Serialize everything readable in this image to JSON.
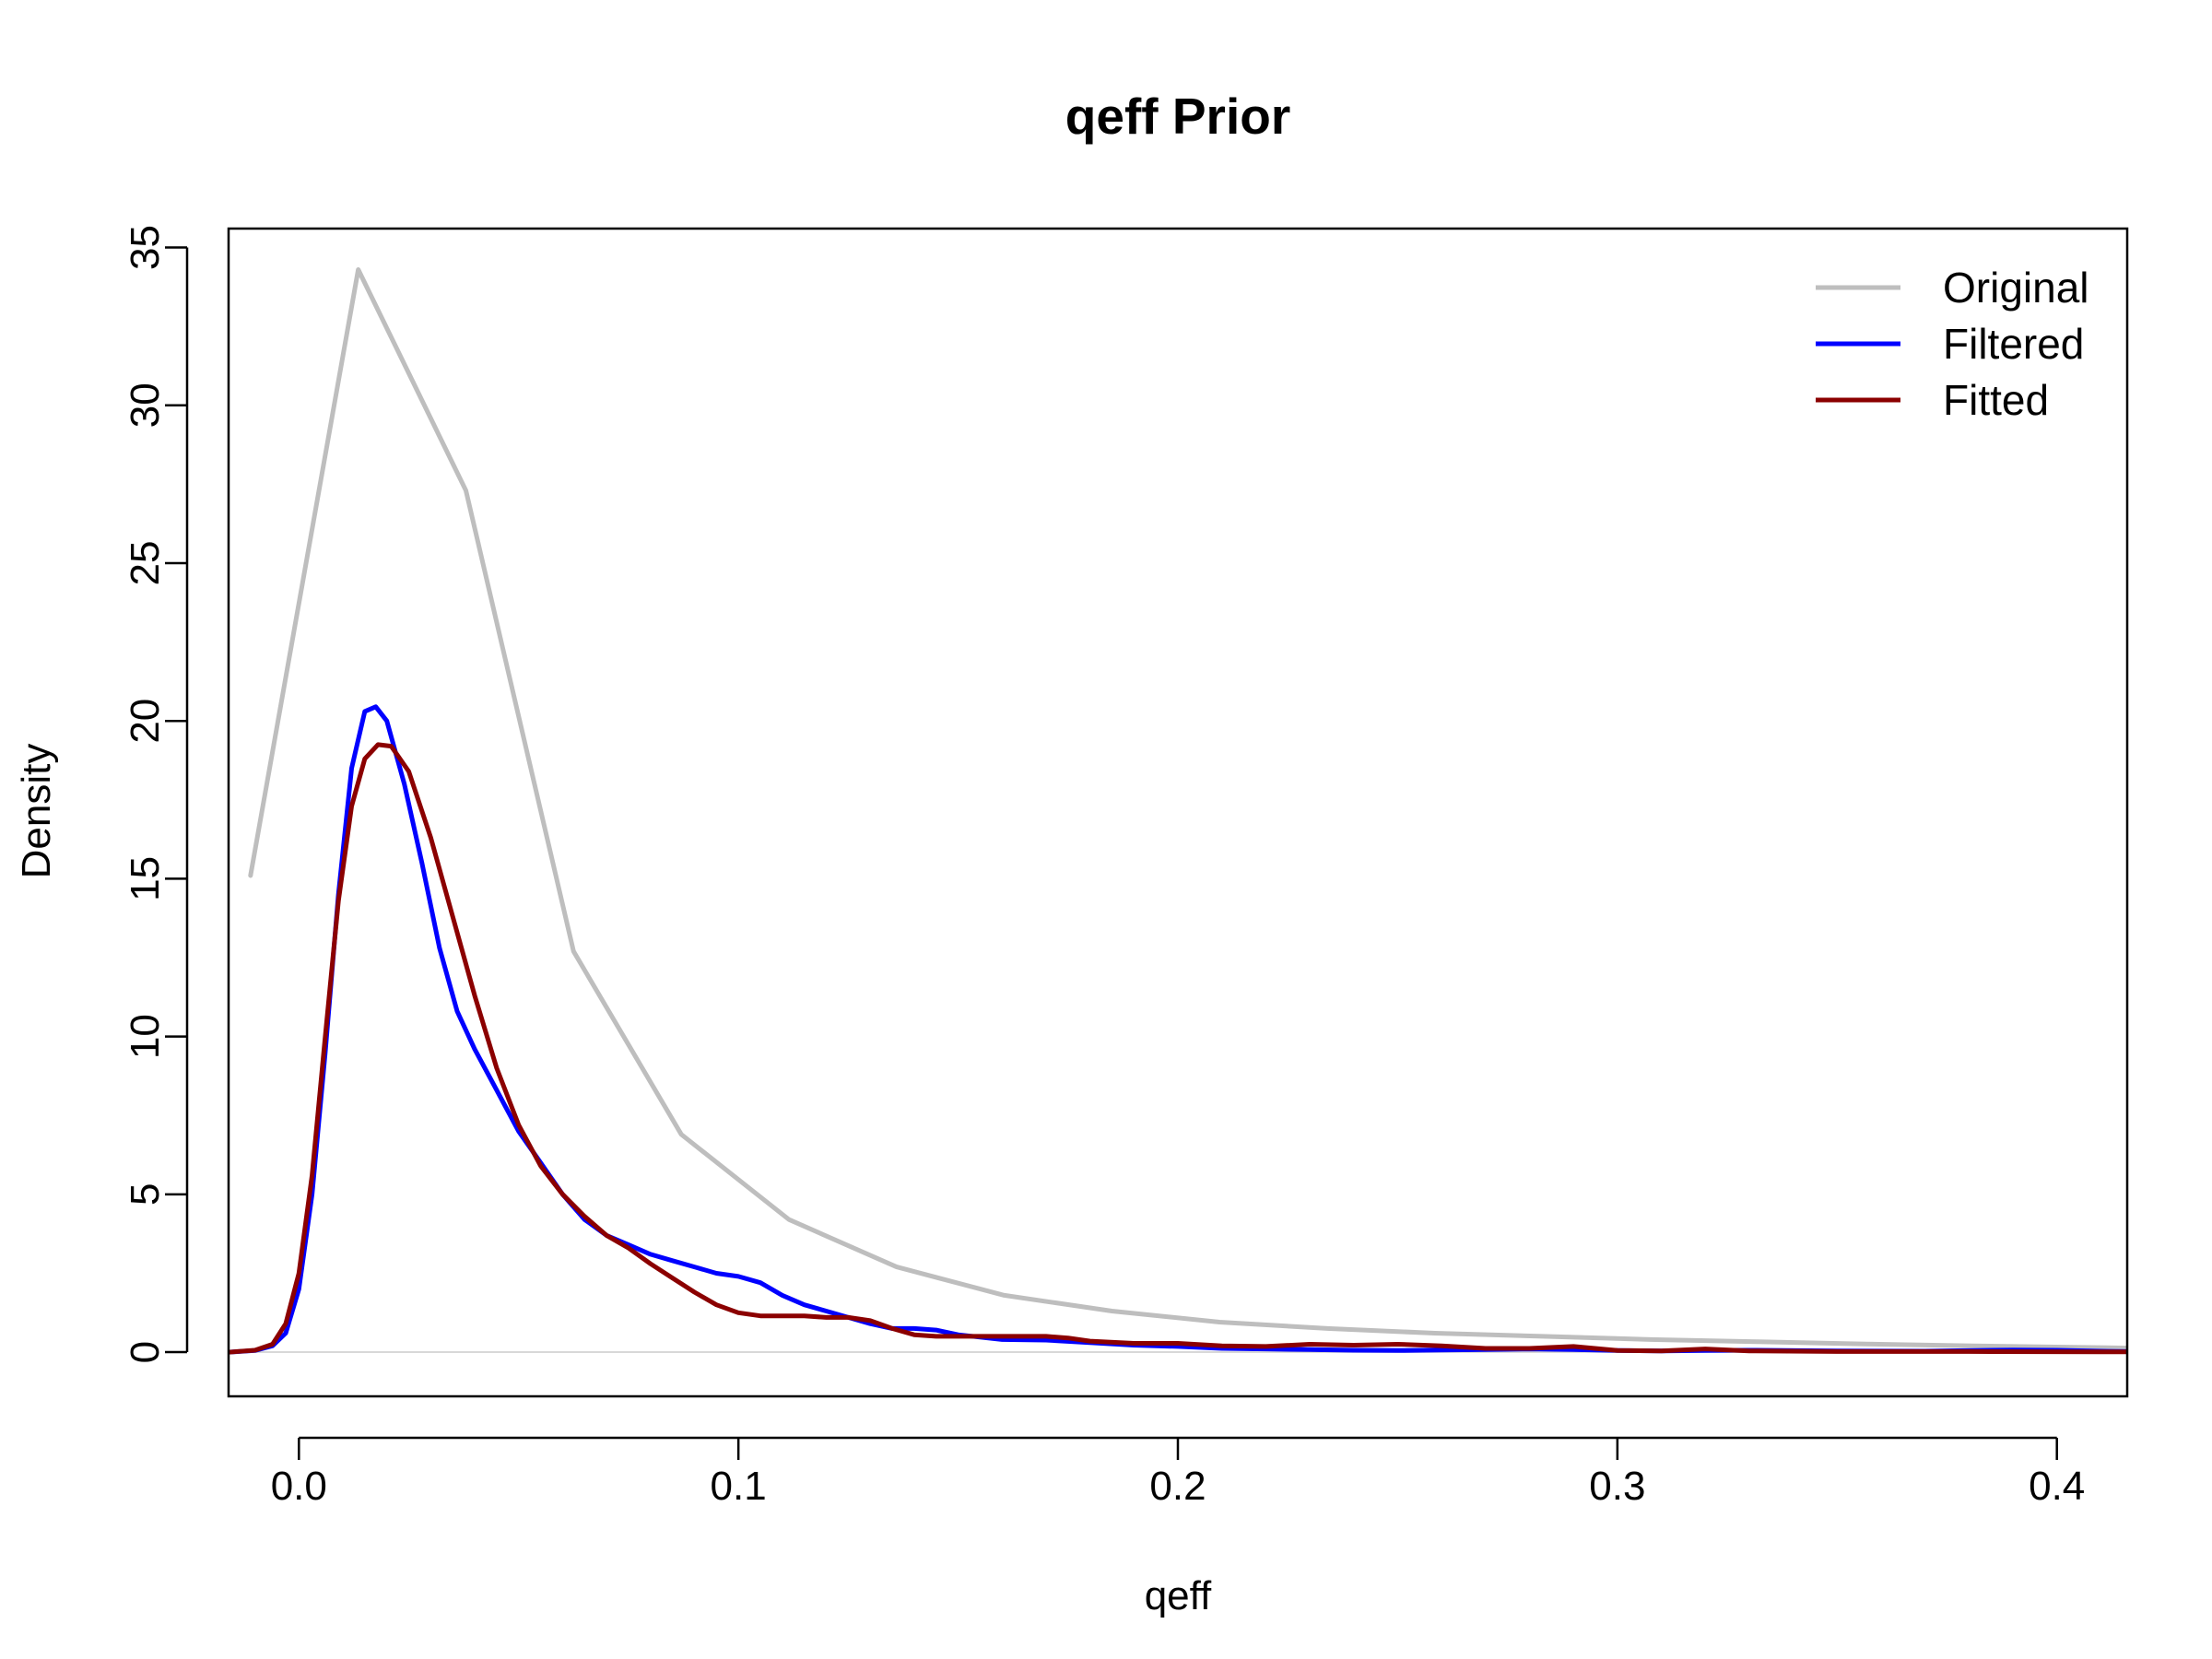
{
  "chart_data": {
    "type": "line",
    "title": "qeff Prior",
    "xlabel": "qeff",
    "ylabel": "Density",
    "xlim": [
      -0.016,
      0.416
    ],
    "ylim": [
      -1.4,
      35.6
    ],
    "x_ticks": [
      0.0,
      0.1,
      0.2,
      0.3,
      0.4
    ],
    "x_tick_labels": [
      "0.0",
      "0.1",
      "0.2",
      "0.3",
      "0.4"
    ],
    "y_ticks": [
      0,
      5,
      10,
      15,
      20,
      25,
      30,
      35
    ],
    "y_tick_labels": [
      "0",
      "5",
      "10",
      "15",
      "20",
      "25",
      "30",
      "35"
    ],
    "grid": false,
    "reference_line": {
      "y": 0,
      "color": "#cccccc"
    },
    "legend": {
      "position": "top-right",
      "boxed": false
    },
    "series": [
      {
        "name": "Original",
        "color": "#bebebe",
        "points": [
          [
            -0.011,
            15.1
          ],
          [
            0.0135,
            34.3
          ],
          [
            0.038,
            27.3
          ],
          [
            0.0625,
            12.7
          ],
          [
            0.087,
            6.9
          ],
          [
            0.1115,
            4.2
          ],
          [
            0.136,
            2.7
          ],
          [
            0.1605,
            1.8
          ],
          [
            0.185,
            1.3
          ],
          [
            0.2095,
            0.95
          ],
          [
            0.234,
            0.75
          ],
          [
            0.2585,
            0.6
          ],
          [
            0.283,
            0.5
          ],
          [
            0.3075,
            0.4
          ],
          [
            0.332,
            0.33
          ],
          [
            0.3565,
            0.26
          ],
          [
            0.381,
            0.2
          ],
          [
            0.4055,
            0.15
          ],
          [
            0.416,
            0.13
          ]
        ]
      },
      {
        "name": "Filtered",
        "color": "#0000ff",
        "points": [
          [
            -0.016,
            0.0
          ],
          [
            -0.01,
            0.05
          ],
          [
            -0.006,
            0.2
          ],
          [
            -0.003,
            0.6
          ],
          [
            0.0,
            2.0
          ],
          [
            0.003,
            5.0
          ],
          [
            0.006,
            9.5
          ],
          [
            0.009,
            14.5
          ],
          [
            0.012,
            18.5
          ],
          [
            0.015,
            20.3
          ],
          [
            0.0175,
            20.45
          ],
          [
            0.02,
            20.0
          ],
          [
            0.024,
            18.0
          ],
          [
            0.028,
            15.5
          ],
          [
            0.032,
            12.8
          ],
          [
            0.036,
            10.8
          ],
          [
            0.04,
            9.6
          ],
          [
            0.045,
            8.3
          ],
          [
            0.05,
            7.0
          ],
          [
            0.055,
            6.0
          ],
          [
            0.06,
            5.0
          ],
          [
            0.065,
            4.2
          ],
          [
            0.07,
            3.7
          ],
          [
            0.075,
            3.4
          ],
          [
            0.08,
            3.1
          ],
          [
            0.085,
            2.9
          ],
          [
            0.09,
            2.7
          ],
          [
            0.095,
            2.5
          ],
          [
            0.1,
            2.4
          ],
          [
            0.105,
            2.2
          ],
          [
            0.11,
            1.8
          ],
          [
            0.115,
            1.5
          ],
          [
            0.12,
            1.3
          ],
          [
            0.125,
            1.1
          ],
          [
            0.13,
            0.9
          ],
          [
            0.135,
            0.75
          ],
          [
            0.14,
            0.75
          ],
          [
            0.145,
            0.7
          ],
          [
            0.15,
            0.55
          ],
          [
            0.16,
            0.4
          ],
          [
            0.17,
            0.38
          ],
          [
            0.18,
            0.3
          ],
          [
            0.19,
            0.22
          ],
          [
            0.2,
            0.18
          ],
          [
            0.21,
            0.12
          ],
          [
            0.22,
            0.1
          ],
          [
            0.23,
            0.08
          ],
          [
            0.24,
            0.06
          ],
          [
            0.25,
            0.05
          ],
          [
            0.26,
            0.07
          ],
          [
            0.27,
            0.08
          ],
          [
            0.28,
            0.1
          ],
          [
            0.29,
            0.08
          ],
          [
            0.3,
            0.05
          ],
          [
            0.31,
            0.04
          ],
          [
            0.32,
            0.05
          ],
          [
            0.33,
            0.06
          ],
          [
            0.35,
            0.04
          ],
          [
            0.37,
            0.03
          ],
          [
            0.39,
            0.07
          ],
          [
            0.4,
            0.06
          ],
          [
            0.41,
            0.03
          ],
          [
            0.416,
            0.02
          ]
        ]
      },
      {
        "name": "Fitted",
        "color": "#8b0000",
        "points": [
          [
            -0.016,
            0.0
          ],
          [
            -0.01,
            0.06
          ],
          [
            -0.006,
            0.25
          ],
          [
            -0.003,
            0.9
          ],
          [
            0.0,
            2.5
          ],
          [
            0.003,
            5.6
          ],
          [
            0.006,
            10.0
          ],
          [
            0.009,
            14.3
          ],
          [
            0.012,
            17.3
          ],
          [
            0.015,
            18.8
          ],
          [
            0.018,
            19.25
          ],
          [
            0.021,
            19.2
          ],
          [
            0.025,
            18.4
          ],
          [
            0.03,
            16.3
          ],
          [
            0.035,
            13.8
          ],
          [
            0.04,
            11.3
          ],
          [
            0.045,
            9.0
          ],
          [
            0.05,
            7.2
          ],
          [
            0.055,
            5.9
          ],
          [
            0.06,
            5.0
          ],
          [
            0.065,
            4.3
          ],
          [
            0.07,
            3.7
          ],
          [
            0.075,
            3.3
          ],
          [
            0.08,
            2.8
          ],
          [
            0.085,
            2.35
          ],
          [
            0.09,
            1.9
          ],
          [
            0.095,
            1.5
          ],
          [
            0.1,
            1.25
          ],
          [
            0.105,
            1.15
          ],
          [
            0.11,
            1.15
          ],
          [
            0.115,
            1.15
          ],
          [
            0.12,
            1.1
          ],
          [
            0.125,
            1.1
          ],
          [
            0.13,
            1.0
          ],
          [
            0.135,
            0.75
          ],
          [
            0.14,
            0.55
          ],
          [
            0.145,
            0.5
          ],
          [
            0.15,
            0.5
          ],
          [
            0.16,
            0.5
          ],
          [
            0.17,
            0.5
          ],
          [
            0.175,
            0.45
          ],
          [
            0.18,
            0.35
          ],
          [
            0.19,
            0.28
          ],
          [
            0.2,
            0.28
          ],
          [
            0.21,
            0.2
          ],
          [
            0.22,
            0.18
          ],
          [
            0.23,
            0.25
          ],
          [
            0.24,
            0.22
          ],
          [
            0.25,
            0.25
          ],
          [
            0.26,
            0.2
          ],
          [
            0.27,
            0.12
          ],
          [
            0.28,
            0.12
          ],
          [
            0.29,
            0.18
          ],
          [
            0.3,
            0.05
          ],
          [
            0.31,
            0.04
          ],
          [
            0.32,
            0.1
          ],
          [
            0.33,
            0.04
          ],
          [
            0.35,
            0.02
          ],
          [
            0.38,
            0.02
          ],
          [
            0.41,
            0.01
          ],
          [
            0.416,
            0.01
          ]
        ]
      }
    ]
  }
}
